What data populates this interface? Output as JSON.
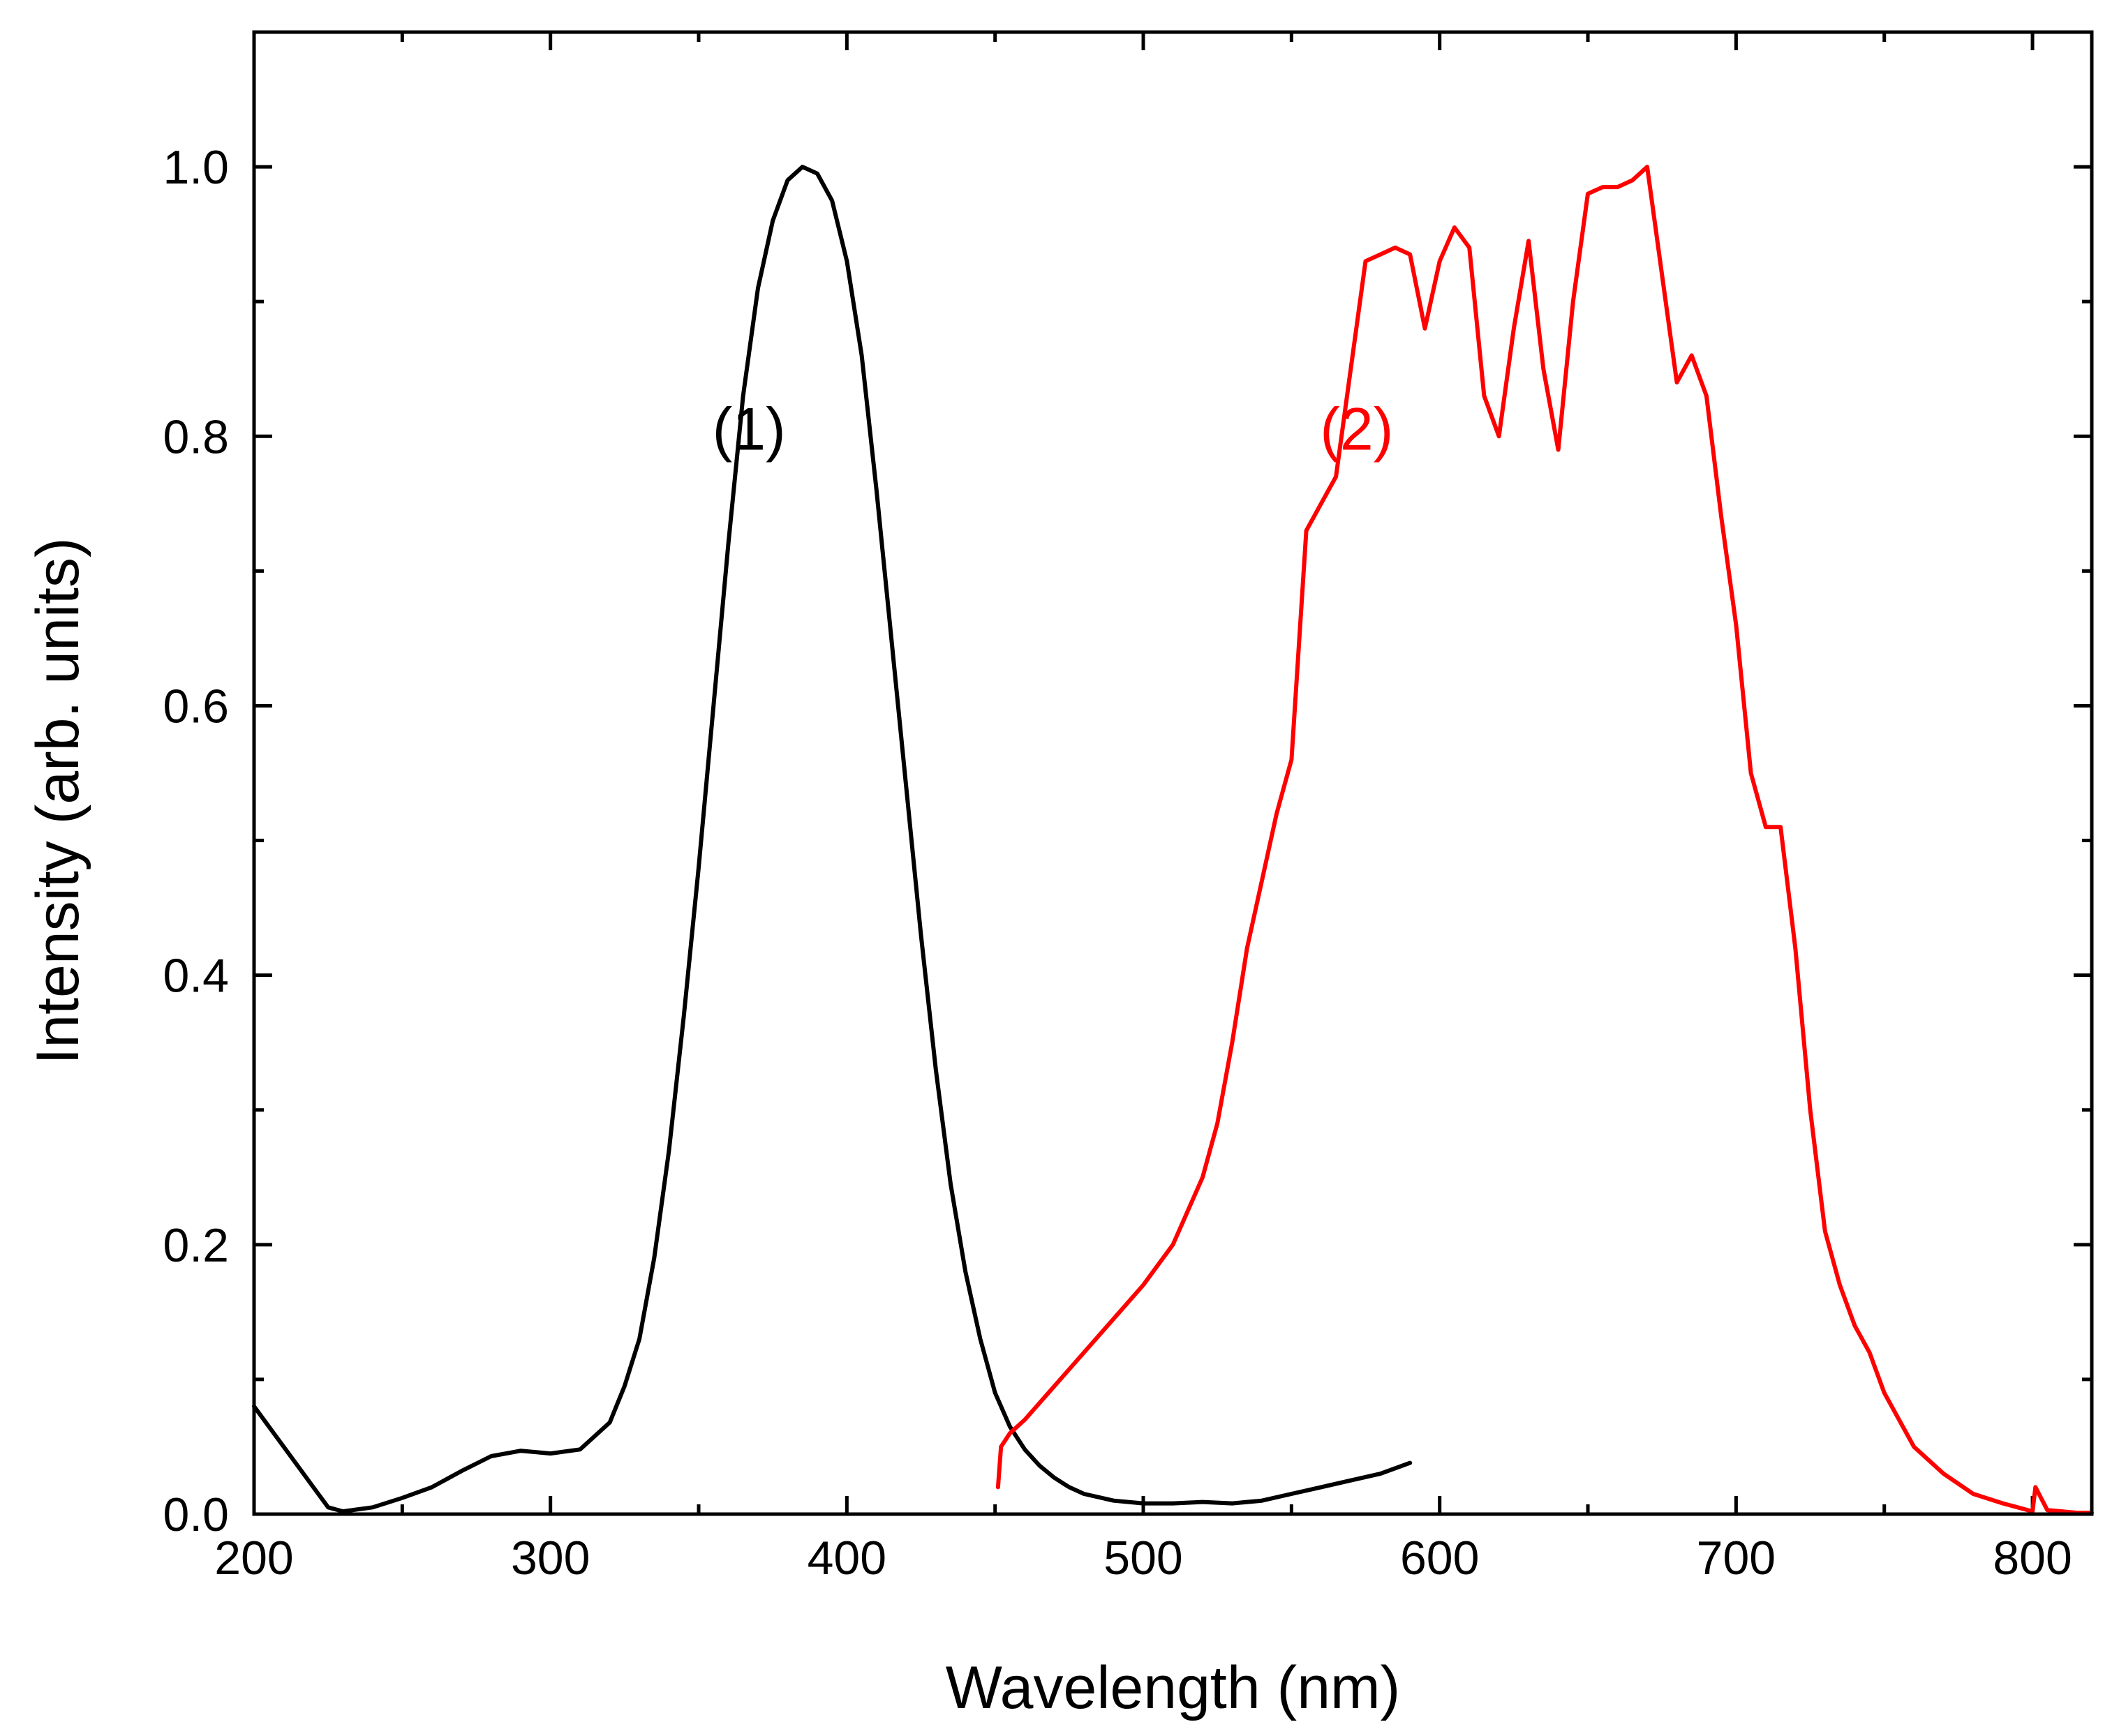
{
  "chart_data": {
    "type": "line",
    "title": "",
    "xlabel": "Wavelength (nm)",
    "ylabel": "Intensity (arb. units)",
    "xlim": [
      200,
      820
    ],
    "ylim": [
      0.0,
      1.1
    ],
    "x_ticks": [
      200,
      300,
      400,
      500,
      600,
      700,
      800
    ],
    "x_tick_labels": [
      "200",
      "300",
      "400",
      "500",
      "600",
      "700",
      "800"
    ],
    "y_ticks": [
      0.0,
      0.2,
      0.4,
      0.6,
      0.8,
      1.0
    ],
    "y_tick_labels": [
      "0.0",
      "0.2",
      "0.4",
      "0.6",
      "0.8",
      "1.0"
    ],
    "grid": false,
    "series": [
      {
        "name": "(1)",
        "label": "(1)",
        "label_at": [
          367,
          0.79
        ],
        "color": "#000000",
        "x": [
          200,
          205,
          210,
          215,
          220,
          225,
          230,
          240,
          250,
          260,
          270,
          280,
          290,
          300,
          310,
          320,
          325,
          330,
          335,
          340,
          345,
          350,
          355,
          360,
          365,
          370,
          375,
          380,
          385,
          390,
          395,
          400,
          405,
          410,
          415,
          420,
          425,
          430,
          435,
          440,
          445,
          450,
          455,
          460,
          465,
          470,
          475,
          480,
          490,
          500,
          510,
          520,
          530,
          540,
          550,
          560,
          570,
          580,
          590
        ],
        "y": [
          0.08,
          0.065,
          0.05,
          0.035,
          0.02,
          0.005,
          0.002,
          0.005,
          0.012,
          0.02,
          0.032,
          0.043,
          0.047,
          0.045,
          0.048,
          0.068,
          0.095,
          0.13,
          0.19,
          0.27,
          0.37,
          0.48,
          0.6,
          0.72,
          0.83,
          0.91,
          0.96,
          0.99,
          1.0,
          0.995,
          0.975,
          0.93,
          0.86,
          0.76,
          0.65,
          0.54,
          0.43,
          0.33,
          0.245,
          0.18,
          0.13,
          0.09,
          0.065,
          0.048,
          0.036,
          0.027,
          0.02,
          0.015,
          0.01,
          0.008,
          0.008,
          0.009,
          0.008,
          0.01,
          0.015,
          0.02,
          0.025,
          0.03,
          0.038
        ]
      },
      {
        "name": "(2)",
        "label": "(2)",
        "label_at": [
          572,
          0.79
        ],
        "color": "#ff0000",
        "x": [
          451,
          452,
          455,
          460,
          470,
          480,
          490,
          500,
          510,
          520,
          525,
          530,
          535,
          540,
          545,
          550,
          555,
          560,
          565,
          570,
          575,
          580,
          585,
          590,
          595,
          600,
          605,
          610,
          615,
          620,
          625,
          630,
          635,
          640,
          645,
          650,
          655,
          660,
          665,
          670,
          675,
          680,
          685,
          690,
          695,
          700,
          705,
          710,
          715,
          720,
          725,
          730,
          735,
          740,
          745,
          750,
          760,
          770,
          780,
          790,
          795,
          800,
          801,
          805,
          810,
          815,
          820
        ],
        "y": [
          0.02,
          0.05,
          0.06,
          0.07,
          0.095,
          0.12,
          0.145,
          0.17,
          0.2,
          0.25,
          0.29,
          0.35,
          0.42,
          0.47,
          0.52,
          0.56,
          0.73,
          0.75,
          0.77,
          0.85,
          0.93,
          0.935,
          0.94,
          0.935,
          0.88,
          0.93,
          0.955,
          0.94,
          0.83,
          0.8,
          0.88,
          0.945,
          0.85,
          0.79,
          0.9,
          0.98,
          0.985,
          0.985,
          0.99,
          1.0,
          0.92,
          0.84,
          0.86,
          0.83,
          0.74,
          0.66,
          0.55,
          0.51,
          0.51,
          0.42,
          0.3,
          0.21,
          0.17,
          0.14,
          0.12,
          0.09,
          0.05,
          0.03,
          0.015,
          0.008,
          0.005,
          0.002,
          0.02,
          0.003,
          0.002,
          0.001,
          0.001
        ]
      }
    ]
  }
}
